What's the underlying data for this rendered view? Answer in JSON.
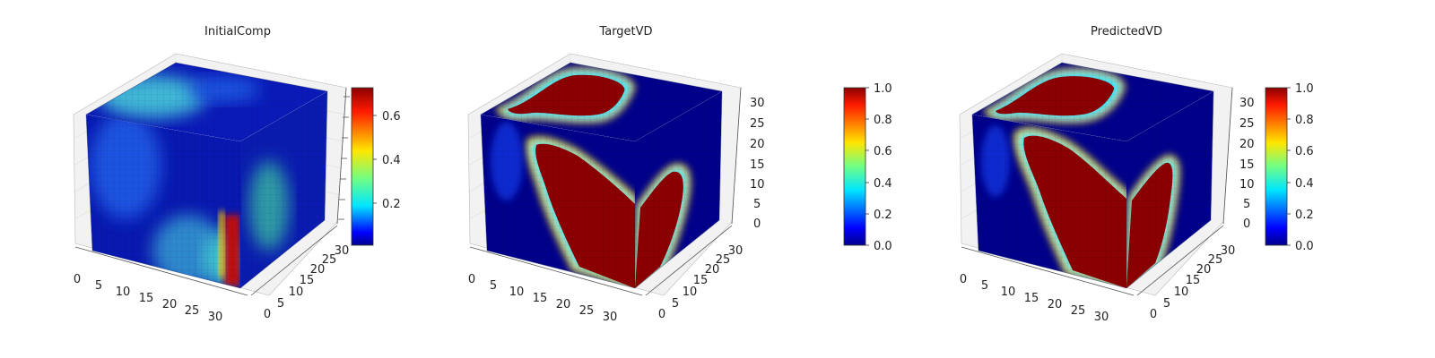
{
  "chart_data": [
    {
      "type": "heatmap",
      "title": "InitialComp",
      "axis_ticks": {
        "x": [
          "0",
          "5",
          "10",
          "15",
          "20",
          "25",
          "30"
        ],
        "y": [
          "0",
          "5",
          "10",
          "15",
          "20",
          "25",
          "30"
        ],
        "z": [
          "",
          "",
          "",
          "",
          "",
          "",
          ""
        ]
      },
      "axis_ranges": {
        "x": [
          0,
          32
        ],
        "y": [
          0,
          32
        ],
        "z": [
          0,
          32
        ]
      },
      "grid": true,
      "colorbar": {
        "range": [
          0.0,
          0.72
        ],
        "ticks": [
          "0.2",
          "0.4",
          "0.6"
        ],
        "tick_values": [
          0.2,
          0.4,
          0.6
        ],
        "colormap": "jet"
      },
      "colors": {
        "low": "#00008b",
        "mid": "#00e5ff",
        "high": "#8b0000"
      }
    },
    {
      "type": "heatmap",
      "title": "TargetVD",
      "axis_ticks": {
        "x": [
          "0",
          "5",
          "10",
          "15",
          "20",
          "25",
          "30"
        ],
        "y": [
          "0",
          "5",
          "10",
          "15",
          "20",
          "25",
          "30"
        ],
        "z": [
          "0",
          "5",
          "10",
          "15",
          "20",
          "25",
          "30"
        ]
      },
      "axis_ranges": {
        "x": [
          0,
          32
        ],
        "y": [
          0,
          32
        ],
        "z": [
          0,
          32
        ]
      },
      "grid": true,
      "colorbar": {
        "range": [
          0.0,
          1.0
        ],
        "ticks": [
          "0.0",
          "0.2",
          "0.4",
          "0.6",
          "0.8",
          "1.0"
        ],
        "tick_values": [
          0.0,
          0.2,
          0.4,
          0.6,
          0.8,
          1.0
        ],
        "colormap": "jet"
      },
      "colors": {
        "low": "#00008b",
        "mid": "#00e5ff",
        "high": "#8b0000"
      }
    },
    {
      "type": "heatmap",
      "title": "PredictedVD",
      "axis_ticks": {
        "x": [
          "0",
          "5",
          "10",
          "15",
          "20",
          "25",
          "30"
        ],
        "y": [
          "0",
          "5",
          "10",
          "15",
          "20",
          "25",
          "30"
        ],
        "z": [
          "0",
          "5",
          "10",
          "15",
          "20",
          "25",
          "30"
        ]
      },
      "axis_ranges": {
        "x": [
          0,
          32
        ],
        "y": [
          0,
          32
        ],
        "z": [
          0,
          32
        ]
      },
      "grid": true,
      "colorbar": {
        "range": [
          0.0,
          1.0
        ],
        "ticks": [
          "0.0",
          "0.2",
          "0.4",
          "0.6",
          "0.8",
          "1.0"
        ],
        "tick_values": [
          0.0,
          0.2,
          0.4,
          0.6,
          0.8,
          1.0
        ],
        "colormap": "jet"
      },
      "colors": {
        "low": "#00008b",
        "mid": "#00e5ff",
        "high": "#8b0000"
      }
    }
  ]
}
